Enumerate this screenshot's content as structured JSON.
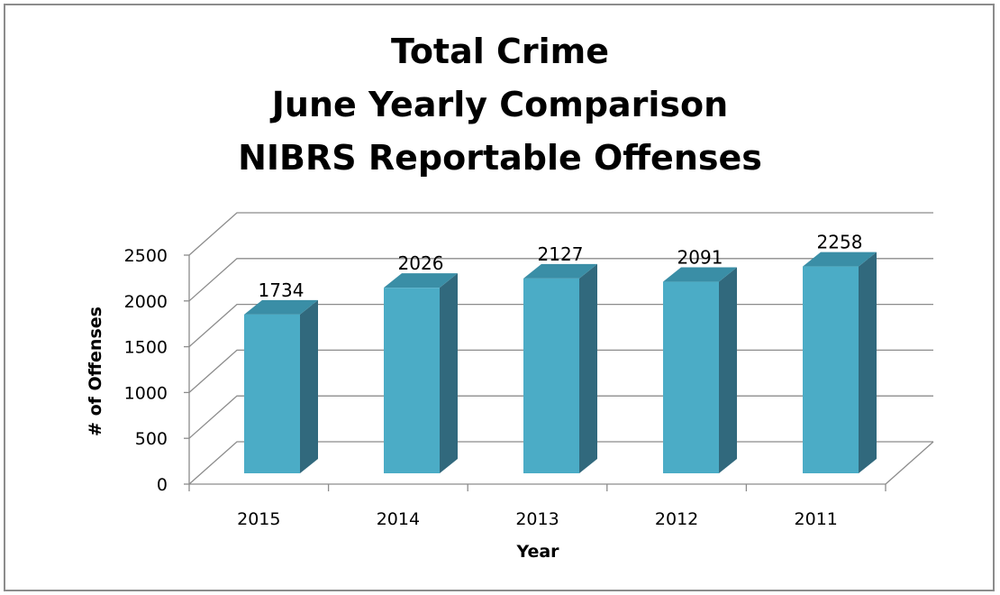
{
  "chart_data": {
    "type": "bar",
    "title": [
      "Total Crime",
      "June Yearly Comparison",
      "NIBRS Reportable Offenses"
    ],
    "xlabel": "Year",
    "ylabel": "# of Offenses",
    "categories": [
      "2015",
      "2014",
      "2013",
      "2012",
      "2011"
    ],
    "values": [
      1734,
      2026,
      2127,
      2091,
      2258
    ],
    "data_labels": [
      "1734",
      "2026",
      "2127",
      "2091",
      "2258"
    ],
    "y_ticks": [
      0,
      500,
      1000,
      1500,
      2000,
      2500
    ],
    "ylim": [
      0,
      2500
    ],
    "grid": true,
    "legend": "none",
    "style": "3d-column",
    "colors": {
      "bar_front": "#4bacc6",
      "bar_top": "#3a8ea6",
      "bar_side": "#31697d",
      "grid": "#8c8c8c"
    }
  }
}
